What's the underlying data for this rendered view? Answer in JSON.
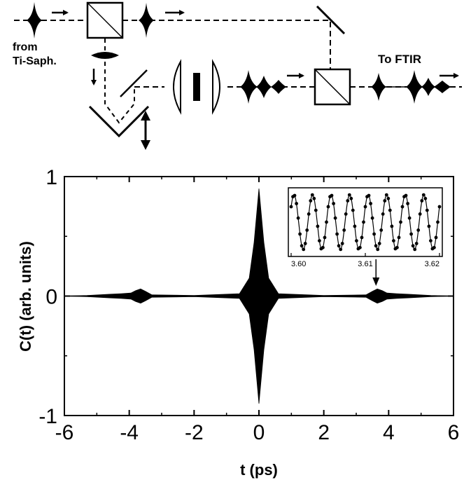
{
  "diagram": {
    "source_label_line1": "from",
    "source_label_line2": "Ti-Saph.",
    "output_label": "To FTIR"
  },
  "chart_data": [
    {
      "type": "line",
      "xlabel": "t (ps)",
      "ylabel": "C(t) (arb. units)",
      "xlim": [
        -6,
        6
      ],
      "ylim": [
        -1,
        1
      ],
      "x_ticks": [
        -6,
        -4,
        -2,
        0,
        2,
        4,
        6
      ],
      "x_tick_labels": [
        "-6",
        "-4",
        "-2",
        "0",
        "2",
        "4",
        "6"
      ],
      "y_ticks": [
        -1,
        0,
        1
      ],
      "y_tick_labels": [
        "-1",
        "0",
        "1"
      ],
      "grid": false,
      "series": [
        {
          "envelope": [
            {
              "t": -5.3,
              "a": 0.005
            },
            {
              "t": -4.6,
              "a": 0.015
            },
            {
              "t": -4.25,
              "a": 0.02
            },
            {
              "t": -3.95,
              "a": 0.025
            },
            {
              "t": -3.8,
              "a": 0.045
            },
            {
              "t": -3.65,
              "a": 0.06
            },
            {
              "t": -3.5,
              "a": 0.04
            },
            {
              "t": -3.3,
              "a": 0.01
            },
            {
              "t": -2.0,
              "a": 0.005
            },
            {
              "t": -0.6,
              "a": 0.02
            },
            {
              "t": -0.3,
              "a": 0.15
            },
            {
              "t": -0.15,
              "a": 0.45
            },
            {
              "t": 0.0,
              "a": 0.9
            },
            {
              "t": 0.15,
              "a": 0.45
            },
            {
              "t": 0.3,
              "a": 0.15
            },
            {
              "t": 0.6,
              "a": 0.02
            },
            {
              "t": 2.0,
              "a": 0.005
            },
            {
              "t": 3.3,
              "a": 0.01
            },
            {
              "t": 3.5,
              "a": 0.04
            },
            {
              "t": 3.65,
              "a": 0.06
            },
            {
              "t": 3.8,
              "a": 0.045
            },
            {
              "t": 3.95,
              "a": 0.025
            },
            {
              "t": 4.25,
              "a": 0.02
            },
            {
              "t": 4.6,
              "a": 0.015
            },
            {
              "t": 5.3,
              "a": 0.005
            }
          ]
        }
      ],
      "annotation": {
        "arrow_at_x": 3.61
      }
    },
    {
      "type": "line",
      "role": "inset",
      "xlim": [
        3.6,
        3.62
      ],
      "x_ticks": [
        3.6,
        3.61,
        3.62
      ],
      "x_tick_labels": [
        "3.60",
        "3.61",
        "3.62"
      ],
      "period": 0.0025,
      "markers": true
    }
  ]
}
